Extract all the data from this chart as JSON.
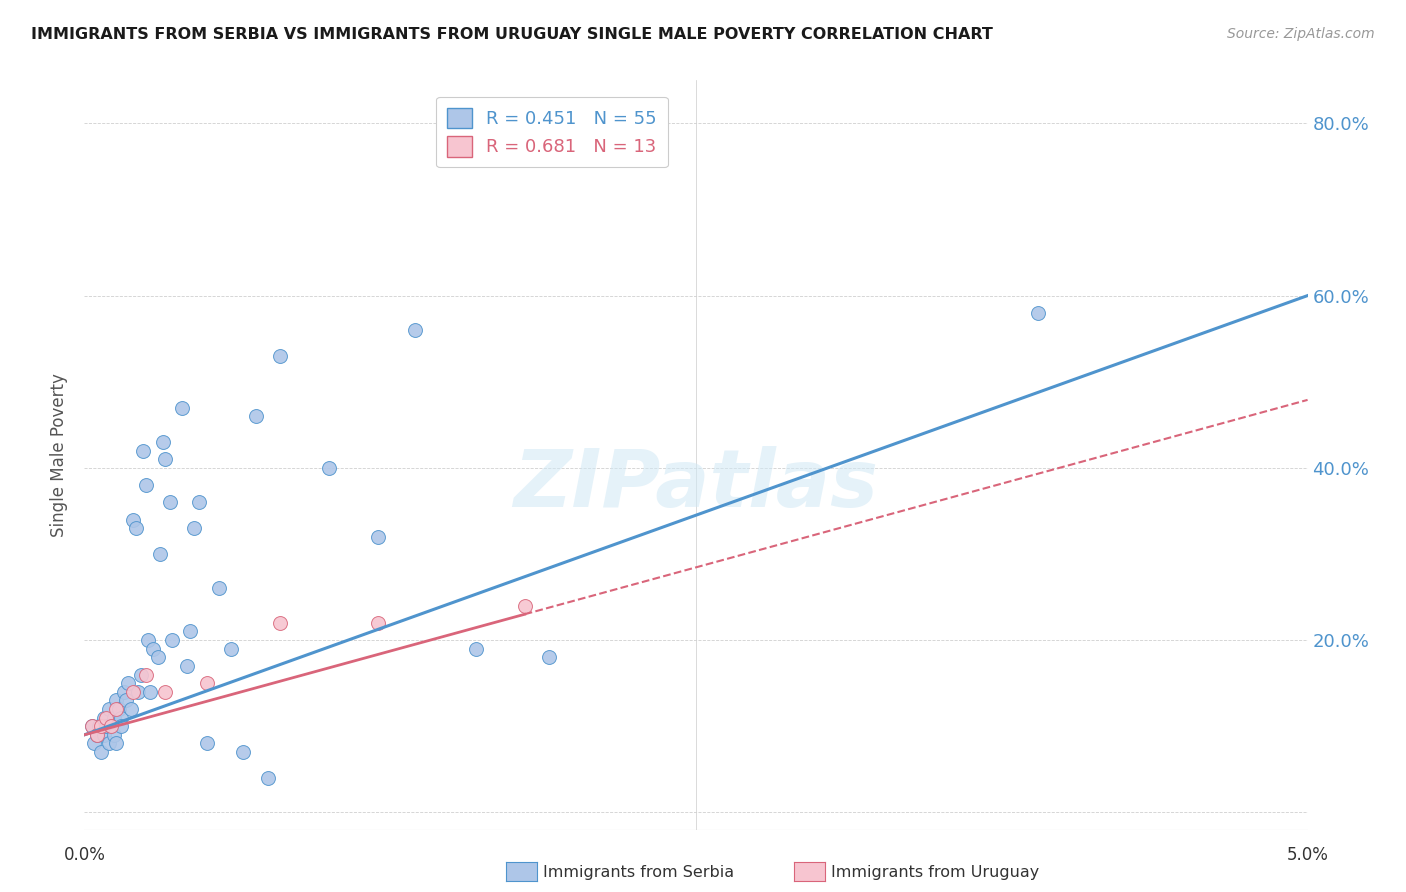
{
  "title": "IMMIGRANTS FROM SERBIA VS IMMIGRANTS FROM URUGUAY SINGLE MALE POVERTY CORRELATION CHART",
  "source": "Source: ZipAtlas.com",
  "ylabel": "Single Male Poverty",
  "xlim": [
    0.0,
    0.05
  ],
  "ylim": [
    -0.02,
    0.85
  ],
  "yticks": [
    0.0,
    0.2,
    0.4,
    0.6,
    0.8
  ],
  "ytick_labels": [
    "",
    "20.0%",
    "40.0%",
    "60.0%",
    "80.0%"
  ],
  "serbia_color": "#aec6e8",
  "serbia_edge_color": "#4f94cd",
  "uruguay_color": "#f7c5d0",
  "uruguay_edge_color": "#d9657a",
  "serbia_R": 0.451,
  "serbia_N": 55,
  "uruguay_R": 0.681,
  "uruguay_N": 13,
  "serbia_scatter_x": [
    0.0003,
    0.0004,
    0.0005,
    0.0006,
    0.0007,
    0.0008,
    0.0008,
    0.0009,
    0.001,
    0.001,
    0.0011,
    0.0012,
    0.0012,
    0.0013,
    0.0013,
    0.0014,
    0.0015,
    0.0015,
    0.0016,
    0.0017,
    0.0018,
    0.0019,
    0.002,
    0.0021,
    0.0022,
    0.0023,
    0.0024,
    0.0025,
    0.0026,
    0.0027,
    0.0028,
    0.003,
    0.0031,
    0.0032,
    0.0033,
    0.0035,
    0.0036,
    0.004,
    0.0042,
    0.0043,
    0.0045,
    0.0047,
    0.005,
    0.0055,
    0.006,
    0.0065,
    0.007,
    0.0075,
    0.008,
    0.01,
    0.012,
    0.0135,
    0.016,
    0.019,
    0.039
  ],
  "serbia_scatter_y": [
    0.1,
    0.08,
    0.09,
    0.1,
    0.07,
    0.11,
    0.09,
    0.1,
    0.12,
    0.08,
    0.1,
    0.09,
    0.11,
    0.08,
    0.13,
    0.12,
    0.11,
    0.1,
    0.14,
    0.13,
    0.15,
    0.12,
    0.34,
    0.33,
    0.14,
    0.16,
    0.42,
    0.38,
    0.2,
    0.14,
    0.19,
    0.18,
    0.3,
    0.43,
    0.41,
    0.36,
    0.2,
    0.47,
    0.17,
    0.21,
    0.33,
    0.36,
    0.08,
    0.26,
    0.19,
    0.07,
    0.46,
    0.04,
    0.53,
    0.4,
    0.32,
    0.56,
    0.19,
    0.18,
    0.58
  ],
  "uruguay_scatter_x": [
    0.0003,
    0.0005,
    0.0007,
    0.0009,
    0.0011,
    0.0013,
    0.002,
    0.0025,
    0.0033,
    0.005,
    0.008,
    0.012,
    0.018
  ],
  "uruguay_scatter_y": [
    0.1,
    0.09,
    0.1,
    0.11,
    0.1,
    0.12,
    0.14,
    0.16,
    0.14,
    0.15,
    0.22,
    0.22,
    0.24
  ],
  "background_color": "#ffffff",
  "grid_color": "#d0d0d0"
}
